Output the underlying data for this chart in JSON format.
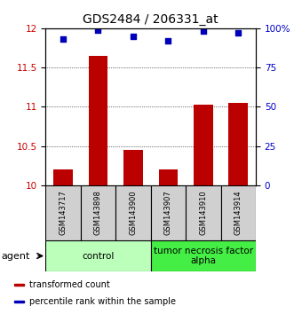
{
  "title": "GDS2484 / 206331_at",
  "samples": [
    "GSM143717",
    "GSM143898",
    "GSM143900",
    "GSM143907",
    "GSM143910",
    "GSM143914"
  ],
  "bar_values": [
    10.2,
    11.65,
    10.45,
    10.2,
    11.03,
    11.05
  ],
  "percentile_values": [
    93,
    99,
    95,
    92,
    98,
    97
  ],
  "bar_color": "#bb0000",
  "dot_color": "#0000bb",
  "ylim_left": [
    10.0,
    12.0
  ],
  "ylim_right": [
    0,
    100
  ],
  "yticks_left": [
    10.0,
    10.5,
    11.0,
    11.5,
    12.0
  ],
  "ytick_labels_left": [
    "10",
    "10.5",
    "11",
    "11.5",
    "12"
  ],
  "yticks_right": [
    0,
    25,
    50,
    75,
    100
  ],
  "ytick_labels_right": [
    "0",
    "25",
    "50",
    "75",
    "100%"
  ],
  "groups": [
    {
      "label": "control",
      "span": [
        0,
        3
      ],
      "color": "#bbffbb"
    },
    {
      "label": "tumor necrosis factor\nalpha",
      "span": [
        3,
        6
      ],
      "color": "#44ee44"
    }
  ],
  "legend_items": [
    {
      "label": "transformed count",
      "color": "#bb0000"
    },
    {
      "label": "percentile rank within the sample",
      "color": "#0000bb"
    }
  ],
  "agent_label": "agent",
  "tick_color_left": "#cc0000",
  "tick_color_right": "#0000cc",
  "title_fontsize": 10,
  "axis_fontsize": 7.5,
  "sample_fontsize": 6.0,
  "group_fontsize": 7.5,
  "legend_fontsize": 7
}
